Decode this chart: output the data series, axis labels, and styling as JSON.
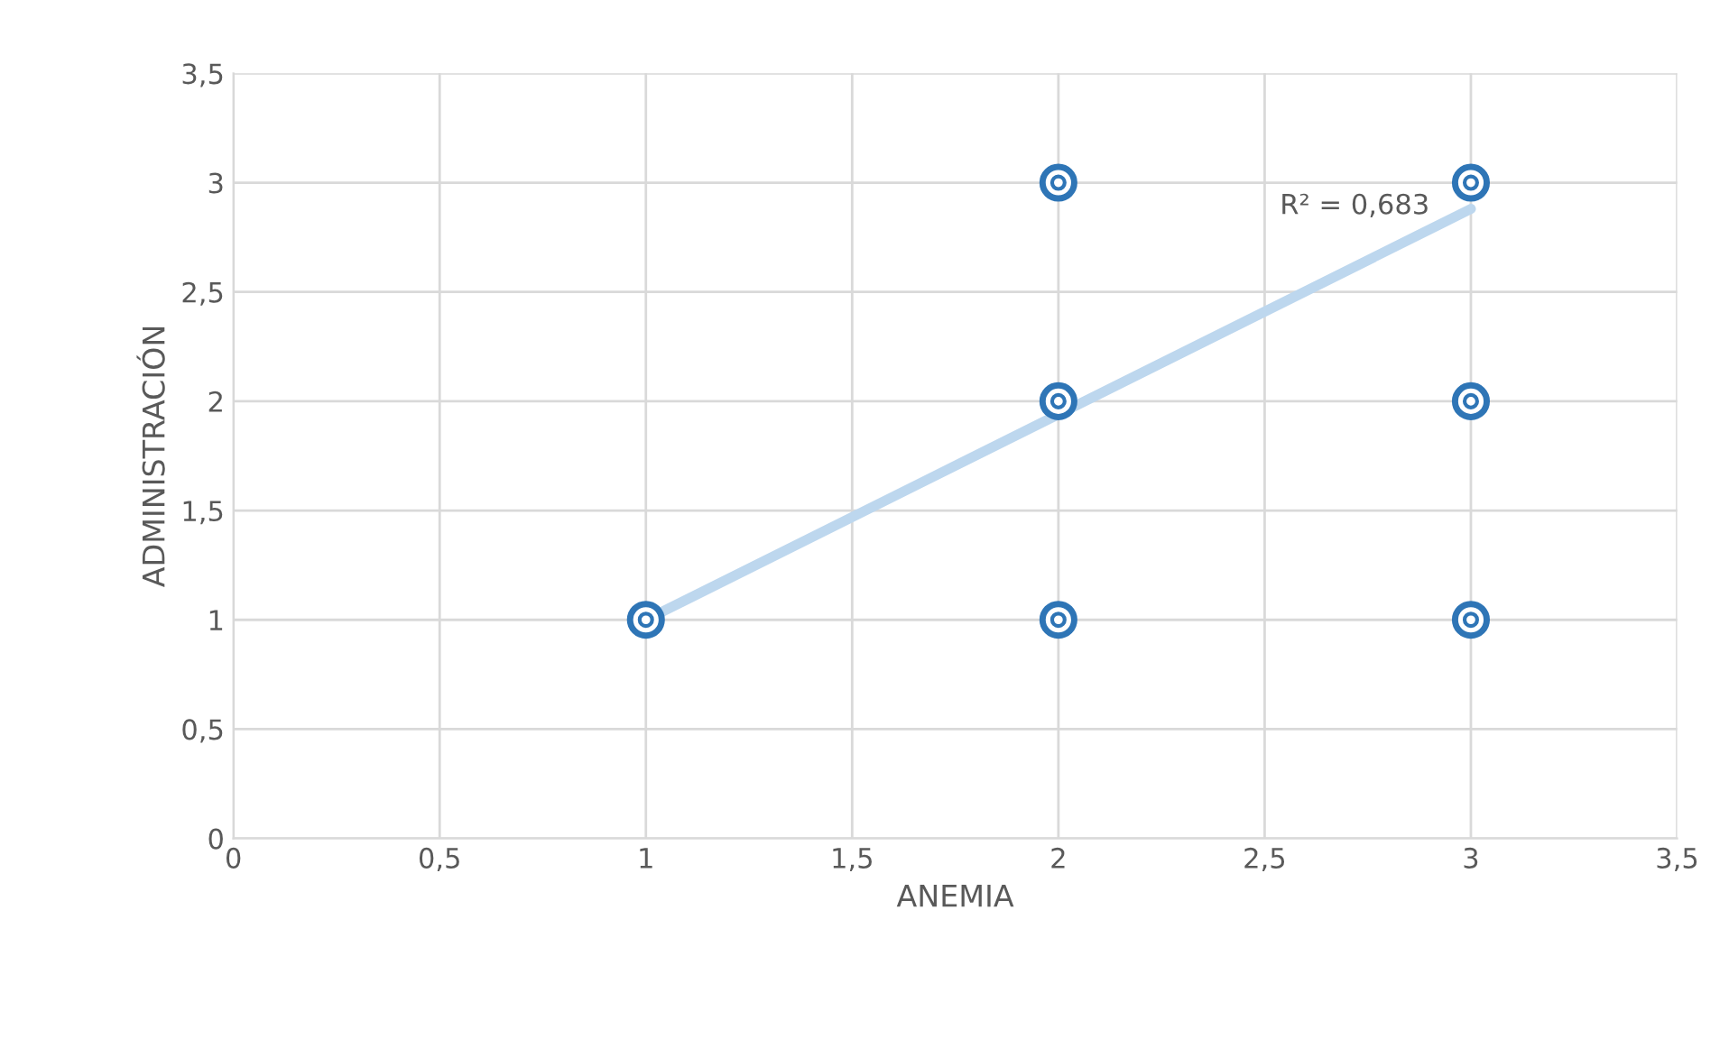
{
  "chart_data": {
    "type": "scatter",
    "xlabel": "ANEMIA",
    "ylabel": "ADMINISTRACIÓN",
    "xlim": [
      0,
      3.5
    ],
    "ylim": [
      0,
      3.5
    ],
    "xticks": [
      0,
      {
        "value": 0.5,
        "label": "0,5"
      },
      1,
      {
        "value": 1.5,
        "label": "1,5"
      },
      2,
      {
        "value": 2.5,
        "label": "2,5"
      },
      3,
      {
        "value": 3.5,
        "label": "3,5"
      }
    ],
    "yticks": [
      0,
      {
        "value": 0.5,
        "label": "0,5"
      },
      1,
      {
        "value": 1.5,
        "label": "1,5"
      },
      2,
      {
        "value": 2.5,
        "label": "2,5"
      },
      3,
      {
        "value": 3.5,
        "label": "3,5"
      }
    ],
    "grid": true,
    "marker": "circle",
    "series": [
      {
        "color": "#2e75b6",
        "x": [
          1,
          2,
          2,
          2,
          3,
          3,
          3
        ],
        "values": [
          1,
          1,
          2,
          3,
          1,
          2,
          3
        ]
      },
      {
        "type": "line",
        "color": "#bdd7ee",
        "x": [
          1,
          3
        ],
        "values": [
          1.0,
          2.88
        ]
      }
    ],
    "annotations": [
      "R² = 0,683"
    ]
  }
}
